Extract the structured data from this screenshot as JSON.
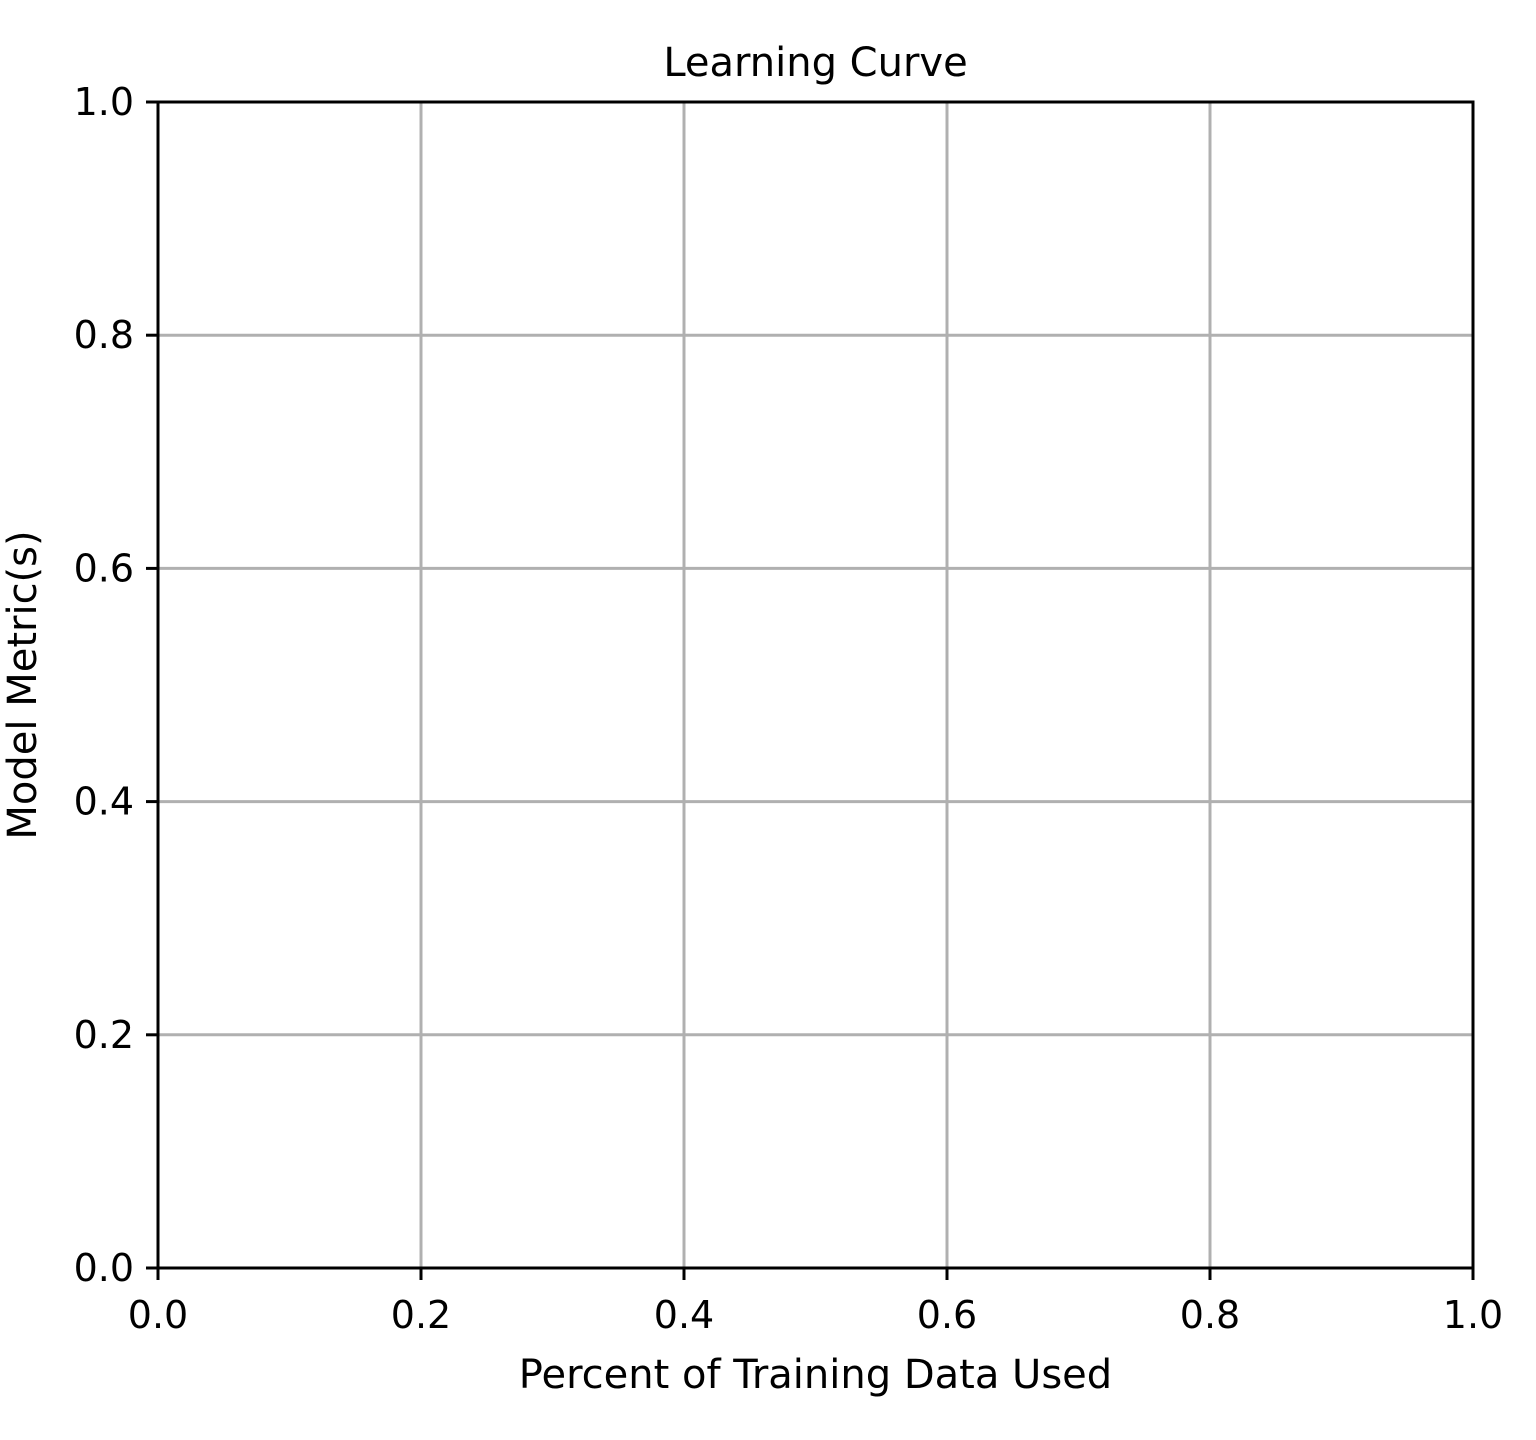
{
  "chart_data": {
    "type": "line",
    "title": "Learning Curve",
    "xlabel": "Percent of Training Data Used",
    "ylabel": "Model Metric(s)",
    "xlim": [
      0.0,
      1.0
    ],
    "ylim": [
      0.0,
      1.0
    ],
    "xticks": [
      "0.0",
      "0.2",
      "0.4",
      "0.6",
      "0.8",
      "1.0"
    ],
    "yticks": [
      "0.0",
      "0.2",
      "0.4",
      "0.6",
      "0.8",
      "1.0"
    ],
    "grid": true,
    "series": []
  },
  "colors": {
    "grid": "#b0b0b0",
    "axes": "#000000",
    "background": "#ffffff"
  }
}
